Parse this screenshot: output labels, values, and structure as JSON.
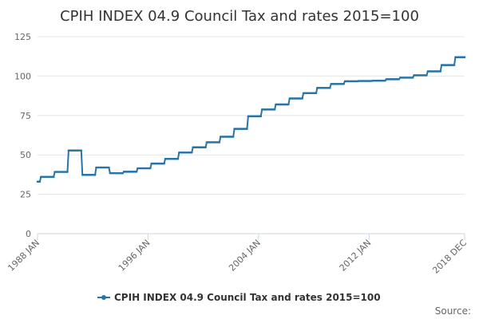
{
  "chart_data": {
    "type": "line",
    "title": "CPIH INDEX 04.9 Council Tax and rates 2015=100",
    "xlabel": "",
    "ylabel": "",
    "x_tick_labels": [
      "1988 JAN",
      "1996 JAN",
      "2004 JAN",
      "2012 JAN",
      "2018 DEC"
    ],
    "y_ticks": [
      0,
      25,
      50,
      75,
      100,
      125
    ],
    "ylim": [
      0,
      125
    ],
    "xlim": [
      "1988 JAN",
      "2018 DEC"
    ],
    "grid": "horizontal",
    "legend_position": "bottom-center",
    "credit": "Source:",
    "colors": {
      "series": "#2874a6",
      "grid": "#e6e6e6",
      "axis": "#ccd6eb"
    },
    "series": [
      {
        "name": "CPIH INDEX 04.9 Council Tax and rates 2015=100",
        "step_values": [
          {
            "from": "1988 JAN",
            "value": 33.0
          },
          {
            "from": "1988 APR",
            "value": 36.0
          },
          {
            "from": "1989 APR",
            "value": 39.2
          },
          {
            "from": "1990 APR",
            "value": 52.8
          },
          {
            "from": "1991 APR",
            "value": 37.3
          },
          {
            "from": "1992 APR",
            "value": 42.0
          },
          {
            "from": "1993 APR",
            "value": 38.4
          },
          {
            "from": "1994 APR",
            "value": 39.3
          },
          {
            "from": "1995 APR",
            "value": 41.5
          },
          {
            "from": "1996 APR",
            "value": 44.5
          },
          {
            "from": "1997 APR",
            "value": 47.5
          },
          {
            "from": "1998 APR",
            "value": 51.5
          },
          {
            "from": "1999 APR",
            "value": 54.8
          },
          {
            "from": "2000 APR",
            "value": 58.0
          },
          {
            "from": "2001 APR",
            "value": 61.5
          },
          {
            "from": "2002 APR",
            "value": 66.5
          },
          {
            "from": "2003 APR",
            "value": 74.5
          },
          {
            "from": "2004 APR",
            "value": 78.8
          },
          {
            "from": "2005 APR",
            "value": 82.0
          },
          {
            "from": "2006 APR",
            "value": 85.8
          },
          {
            "from": "2007 APR",
            "value": 89.2
          },
          {
            "from": "2008 APR",
            "value": 92.5
          },
          {
            "from": "2009 APR",
            "value": 95.0
          },
          {
            "from": "2010 APR",
            "value": 96.7
          },
          {
            "from": "2011 APR",
            "value": 96.9
          },
          {
            "from": "2012 APR",
            "value": 97.1
          },
          {
            "from": "2013 APR",
            "value": 98.0
          },
          {
            "from": "2014 APR",
            "value": 99.0
          },
          {
            "from": "2015 APR",
            "value": 100.5
          },
          {
            "from": "2016 APR",
            "value": 103.0
          },
          {
            "from": "2017 APR",
            "value": 107.0
          },
          {
            "from": "2018 APR",
            "value": 112.0
          },
          {
            "from": "2018 DEC",
            "value": 112.0
          }
        ]
      }
    ]
  }
}
